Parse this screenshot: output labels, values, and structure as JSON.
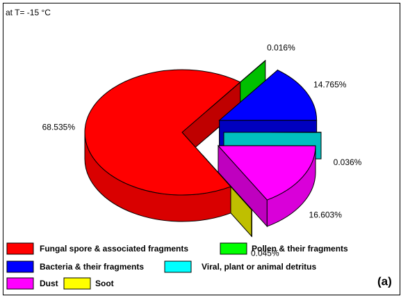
{
  "chart_data": {
    "type": "pie",
    "title": "at T= -15 °C",
    "annotation": "(a)",
    "categories": [
      "Fungal spore & associated fragments",
      "Pollen & their fragments",
      "Bacteria & their fragments",
      "Viral, plant or animal detritus",
      "Dust",
      "Soot"
    ],
    "values": [
      68.535,
      0.016,
      14.765,
      0.036,
      16.603,
      0.045
    ],
    "value_labels": [
      "68.535%",
      "0.016%",
      "14.765%",
      "0.036%",
      "16.603%",
      "0.045%"
    ],
    "colors": [
      "#ff0000",
      "#00ff00",
      "#0000ff",
      "#00ffff",
      "#ff00ff",
      "#ffff00"
    ]
  }
}
